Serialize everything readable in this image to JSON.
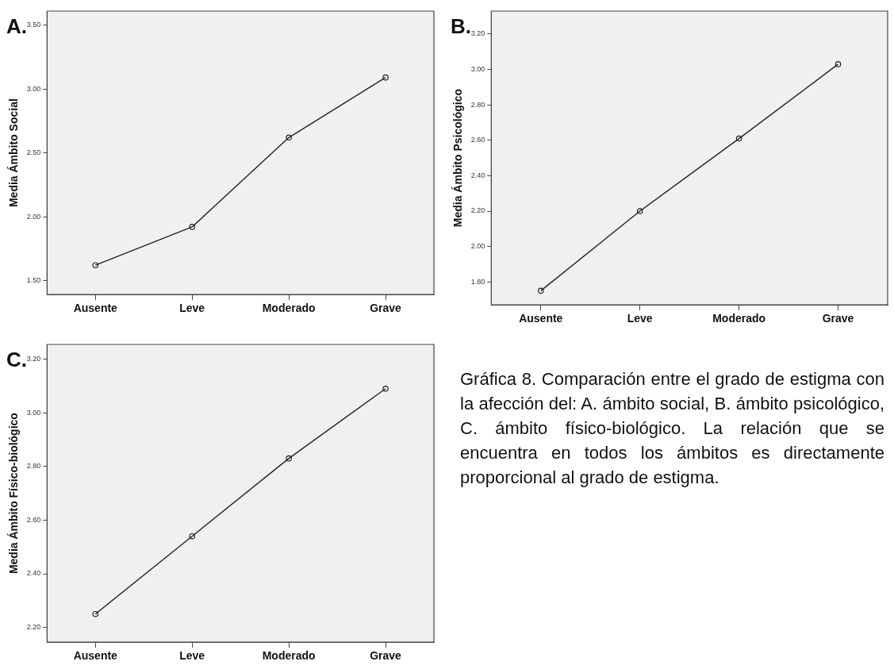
{
  "chart_data": [
    {
      "type": "line",
      "title": "A.",
      "ylabel": "Media Ámbito Social",
      "categories": [
        "Ausente",
        "Leve",
        "Moderado",
        "Grave"
      ],
      "series": [
        {
          "color": "#222222",
          "values": [
            1.62,
            1.92,
            2.62,
            3.09
          ]
        }
      ],
      "ylim": [
        1.39,
        3.61
      ],
      "yticks": [
        {
          "value": 1.5,
          "label": "1.50"
        },
        {
          "value": 2,
          "label": "2.00"
        },
        {
          "value": 2.5,
          "label": "2.50"
        },
        {
          "value": 3,
          "label": "3.00"
        },
        {
          "value": 3.5,
          "label": "3.50"
        }
      ],
      "marker": "circle",
      "line_style": "solid",
      "grid": false,
      "legend": false
    },
    {
      "type": "line",
      "title": "B.",
      "ylabel": "Media Ámbito Psicológico",
      "categories": [
        "Ausente",
        "Leve",
        "Moderado",
        "Grave"
      ],
      "series": [
        {
          "color": "#222222",
          "values": [
            1.75,
            2.2,
            2.61,
            3.03
          ]
        }
      ],
      "ylim": [
        1.67,
        3.33
      ],
      "yticks": [
        {
          "value": 1.8,
          "label": "1.80"
        },
        {
          "value": 2,
          "label": "2.00"
        },
        {
          "value": 2.2,
          "label": "2.20"
        },
        {
          "value": 2.4,
          "label": "2.40"
        },
        {
          "value": 2.6,
          "label": "2.60"
        },
        {
          "value": 2.8,
          "label": "2.80"
        },
        {
          "value": 3,
          "label": "3.00"
        },
        {
          "value": 3.2,
          "label": "3.20"
        }
      ],
      "marker": "circle",
      "line_style": "solid",
      "grid": false,
      "legend": false
    },
    {
      "type": "line",
      "title": "C.",
      "ylabel": "Media Ámbito Físico-biológico",
      "categories": [
        "Ausente",
        "Leve",
        "Moderado",
        "Grave"
      ],
      "series": [
        {
          "color": "#222222",
          "values": [
            2.25,
            2.54,
            2.83,
            3.09
          ]
        }
      ],
      "ylim": [
        2.145,
        3.255
      ],
      "yticks": [
        {
          "value": 2.2,
          "label": "2.20"
        },
        {
          "value": 2.4,
          "label": "2.40"
        },
        {
          "value": 2.6,
          "label": "2.60"
        },
        {
          "value": 2.8,
          "label": "2.80"
        },
        {
          "value": 3,
          "label": "3.00"
        },
        {
          "value": 3.2,
          "label": "3.20"
        }
      ],
      "marker": "circle",
      "line_style": "solid",
      "grid": false,
      "legend": false
    },
    {
      "type": "other",
      "annotations": [
        "Gráfica 8. Comparación entre el grado de estigma con la afección del: A. ámbito social, B. ámbito psicológico, C. ámbito físico-biológico. La relación que se encuentra en todos los ámbitos es directamente proporcional al grado de estigma."
      ]
    }
  ]
}
